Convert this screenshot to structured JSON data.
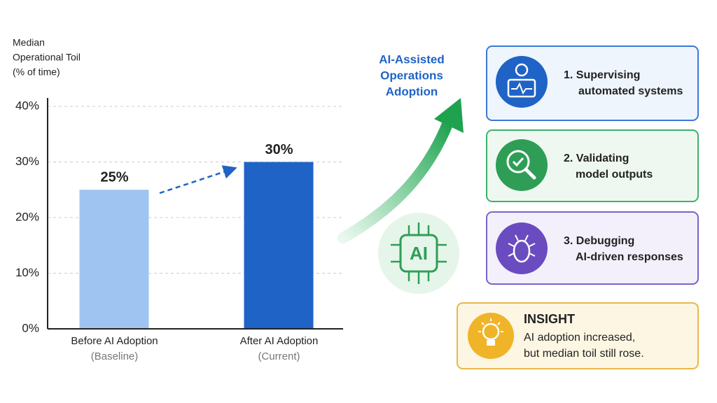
{
  "chart_data": {
    "type": "bar",
    "ylabel": [
      "Median",
      "Operational Toil",
      "(% of time)"
    ],
    "categories": [
      "Before AI Adoption",
      "After AI Adoption"
    ],
    "category_sublabels": [
      "(Baseline)",
      "(Current)"
    ],
    "values": [
      25,
      30
    ],
    "value_labels": [
      "25%",
      "30%"
    ],
    "colors": [
      "#9fc4f1",
      "#1f63c6"
    ],
    "ylim": [
      0,
      40
    ],
    "yticks": [
      {
        "value": 0,
        "label": "0%"
      },
      {
        "value": 10,
        "label": "10%"
      },
      {
        "value": 20,
        "label": "20%"
      },
      {
        "value": 30,
        "label": "30%"
      },
      {
        "value": 40,
        "label": "40%"
      }
    ],
    "grid": true
  },
  "flow": {
    "label": [
      "AI-Assisted",
      "Operations",
      "Adoption"
    ],
    "chip": "AI"
  },
  "cards": [
    {
      "lines": [
        "1.  Supervising",
        "automated systems"
      ]
    },
    {
      "lines": [
        "2. Validating",
        "model outputs"
      ]
    },
    {
      "lines": [
        "3. Debugging",
        "AI-driven responses"
      ]
    }
  ],
  "insight": {
    "title": "INSIGHT",
    "lines": [
      "AI adoption increased,",
      "but median toil still rose."
    ]
  }
}
